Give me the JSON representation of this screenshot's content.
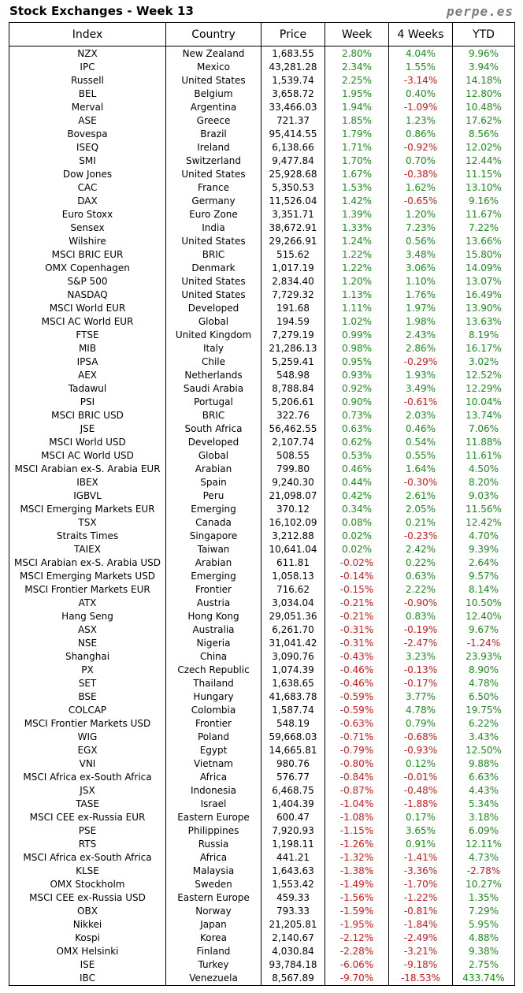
{
  "title": "Stock Exchanges - Week 13",
  "brand": "perpe.es",
  "colors": {
    "positive": "#1e8c1e",
    "negative": "#d41a1a"
  },
  "headers": {
    "index": "Index",
    "country": "Country",
    "price": "Price",
    "week": "Week",
    "weeks4": "4 Weeks",
    "ytd": "YTD"
  },
  "rows": [
    [
      "NZX",
      "New Zealand",
      "1,683.55",
      "2.80%",
      "4.04%",
      "9.96%"
    ],
    [
      "IPC",
      "Mexico",
      "43,281.28",
      "2.34%",
      "1.55%",
      "3.94%"
    ],
    [
      "Russell",
      "United States",
      "1,539.74",
      "2.25%",
      "-3.14%",
      "14.18%"
    ],
    [
      "BEL",
      "Belgium",
      "3,658.72",
      "1.95%",
      "0.40%",
      "12.80%"
    ],
    [
      "Merval",
      "Argentina",
      "33,466.03",
      "1.94%",
      "-1.09%",
      "10.48%"
    ],
    [
      "ASE",
      "Greece",
      "721.37",
      "1.85%",
      "1.23%",
      "17.62%"
    ],
    [
      "Bovespa",
      "Brazil",
      "95,414.55",
      "1.79%",
      "0.86%",
      "8.56%"
    ],
    [
      "ISEQ",
      "Ireland",
      "6,138.66",
      "1.71%",
      "-0.92%",
      "12.02%"
    ],
    [
      "SMI",
      "Switzerland",
      "9,477.84",
      "1.70%",
      "0.70%",
      "12.44%"
    ],
    [
      "Dow Jones",
      "United States",
      "25,928.68",
      "1.67%",
      "-0.38%",
      "11.15%"
    ],
    [
      "CAC",
      "France",
      "5,350.53",
      "1.53%",
      "1.62%",
      "13.10%"
    ],
    [
      "DAX",
      "Germany",
      "11,526.04",
      "1.42%",
      "-0.65%",
      "9.16%"
    ],
    [
      "Euro Stoxx",
      "Euro Zone",
      "3,351.71",
      "1.39%",
      "1.20%",
      "11.67%"
    ],
    [
      "Sensex",
      "India",
      "38,672.91",
      "1.33%",
      "7.23%",
      "7.22%"
    ],
    [
      "Wilshire",
      "United States",
      "29,266.91",
      "1.24%",
      "0.56%",
      "13.66%"
    ],
    [
      "MSCI BRIC EUR",
      "BRIC",
      "515.62",
      "1.22%",
      "3.48%",
      "15.80%"
    ],
    [
      "OMX Copenhagen",
      "Denmark",
      "1,017.19",
      "1.22%",
      "3.06%",
      "14.09%"
    ],
    [
      "S&P 500",
      "United States",
      "2,834.40",
      "1.20%",
      "1.10%",
      "13.07%"
    ],
    [
      "NASDAQ",
      "United States",
      "7,729.32",
      "1.13%",
      "1.76%",
      "16.49%"
    ],
    [
      "MSCI World EUR",
      "Developed",
      "191.68",
      "1.11%",
      "1.97%",
      "13.90%"
    ],
    [
      "MSCI AC World EUR",
      "Global",
      "194.59",
      "1.02%",
      "1.98%",
      "13.63%"
    ],
    [
      "FTSE",
      "United Kingdom",
      "7,279.19",
      "0.99%",
      "2.43%",
      "8.19%"
    ],
    [
      "MIB",
      "Italy",
      "21,286.13",
      "0.98%",
      "2.86%",
      "16.17%"
    ],
    [
      "IPSA",
      "Chile",
      "5,259.41",
      "0.95%",
      "-0.29%",
      "3.02%"
    ],
    [
      "AEX",
      "Netherlands",
      "548.98",
      "0.93%",
      "1.93%",
      "12.52%"
    ],
    [
      "Tadawul",
      "Saudi Arabia",
      "8,788.84",
      "0.92%",
      "3.49%",
      "12.29%"
    ],
    [
      "PSI",
      "Portugal",
      "5,206.61",
      "0.90%",
      "-0.61%",
      "10.04%"
    ],
    [
      "MSCI BRIC USD",
      "BRIC",
      "322.76",
      "0.73%",
      "2.03%",
      "13.74%"
    ],
    [
      "JSE",
      "South Africa",
      "56,462.55",
      "0.63%",
      "0.46%",
      "7.06%"
    ],
    [
      "MSCI World USD",
      "Developed",
      "2,107.74",
      "0.62%",
      "0.54%",
      "11.88%"
    ],
    [
      "MSCI AC World USD",
      "Global",
      "508.55",
      "0.53%",
      "0.55%",
      "11.61%"
    ],
    [
      "MSCI Arabian ex-S. Arabia EUR",
      "Arabian",
      "799.80",
      "0.46%",
      "1.64%",
      "4.50%"
    ],
    [
      "IBEX",
      "Spain",
      "9,240.30",
      "0.44%",
      "-0.30%",
      "8.20%"
    ],
    [
      "IGBVL",
      "Peru",
      "21,098.07",
      "0.42%",
      "2.61%",
      "9.03%"
    ],
    [
      "MSCI Emerging Markets EUR",
      "Emerging",
      "370.12",
      "0.34%",
      "2.05%",
      "11.56%"
    ],
    [
      "TSX",
      "Canada",
      "16,102.09",
      "0.08%",
      "0.21%",
      "12.42%"
    ],
    [
      "Straits Times",
      "Singapore",
      "3,212.88",
      "0.02%",
      "-0.23%",
      "4.70%"
    ],
    [
      "TAIEX",
      "Taiwan",
      "10,641.04",
      "0.02%",
      "2.42%",
      "9.39%"
    ],
    [
      "MSCI Arabian ex-S. Arabia USD",
      "Arabian",
      "611.81",
      "-0.02%",
      "0.22%",
      "2.64%"
    ],
    [
      "MSCI Emerging Markets USD",
      "Emerging",
      "1,058.13",
      "-0.14%",
      "0.63%",
      "9.57%"
    ],
    [
      "MSCI Frontier Markets EUR",
      "Frontier",
      "716.62",
      "-0.15%",
      "2.22%",
      "8.14%"
    ],
    [
      "ATX",
      "Austria",
      "3,034.04",
      "-0.21%",
      "-0.90%",
      "10.50%"
    ],
    [
      "Hang Seng",
      "Hong Kong",
      "29,051.36",
      "-0.21%",
      "0.83%",
      "12.40%"
    ],
    [
      "ASX",
      "Australia",
      "6,261.70",
      "-0.31%",
      "-0.19%",
      "9.67%"
    ],
    [
      "NSE",
      "Nigeria",
      "31,041.42",
      "-0.31%",
      "-2.47%",
      "-1.24%"
    ],
    [
      "Shanghai",
      "China",
      "3,090.76",
      "-0.43%",
      "3.23%",
      "23.93%"
    ],
    [
      "PX",
      "Czech Republic",
      "1,074.39",
      "-0.46%",
      "-0.13%",
      "8.90%"
    ],
    [
      "SET",
      "Thailand",
      "1,638.65",
      "-0.46%",
      "-0.17%",
      "4.78%"
    ],
    [
      "BSE",
      "Hungary",
      "41,683.78",
      "-0.59%",
      "3.77%",
      "6.50%"
    ],
    [
      "COLCAP",
      "Colombia",
      "1,587.74",
      "-0.59%",
      "4.78%",
      "19.75%"
    ],
    [
      "MSCI Frontier Markets USD",
      "Frontier",
      "548.19",
      "-0.63%",
      "0.79%",
      "6.22%"
    ],
    [
      "WIG",
      "Poland",
      "59,668.03",
      "-0.71%",
      "-0.68%",
      "3.43%"
    ],
    [
      "EGX",
      "Egypt",
      "14,665.81",
      "-0.79%",
      "-0.93%",
      "12.50%"
    ],
    [
      "VNI",
      "Vietnam",
      "980.76",
      "-0.80%",
      "0.12%",
      "9.88%"
    ],
    [
      "MSCI Africa ex-South Africa",
      "Africa",
      "576.77",
      "-0.84%",
      "-0.01%",
      "6.63%"
    ],
    [
      "JSX",
      "Indonesia",
      "6,468.75",
      "-0.87%",
      "-0.48%",
      "4.43%"
    ],
    [
      "TASE",
      "Israel",
      "1,404.39",
      "-1.04%",
      "-1.88%",
      "5.34%"
    ],
    [
      "MSCI CEE ex-Russia EUR",
      "Eastern Europe",
      "600.47",
      "-1.08%",
      "0.17%",
      "3.18%"
    ],
    [
      "PSE",
      "Philippines",
      "7,920.93",
      "-1.15%",
      "3.65%",
      "6.09%"
    ],
    [
      "RTS",
      "Russia",
      "1,198.11",
      "-1.26%",
      "0.91%",
      "12.11%"
    ],
    [
      "MSCI Africa ex-South Africa",
      "Africa",
      "441.21",
      "-1.32%",
      "-1.41%",
      "4.73%"
    ],
    [
      "KLSE",
      "Malaysia",
      "1,643.63",
      "-1.38%",
      "-3.36%",
      "-2.78%"
    ],
    [
      "OMX Stockholm",
      "Sweden",
      "1,553.42",
      "-1.49%",
      "-1.70%",
      "10.27%"
    ],
    [
      "MSCI CEE ex-Russia USD",
      "Eastern Europe",
      "459.33",
      "-1.56%",
      "-1.22%",
      "1.35%"
    ],
    [
      "OBX",
      "Norway",
      "793.33",
      "-1.59%",
      "-0.81%",
      "7.29%"
    ],
    [
      "Nikkei",
      "Japan",
      "21,205.81",
      "-1.95%",
      "-1.84%",
      "5.95%"
    ],
    [
      "Kospi",
      "Korea",
      "2,140.67",
      "-2.12%",
      "-2.49%",
      "4.88%"
    ],
    [
      "OMX Helsinki",
      "Finland",
      "4,030.84",
      "-2.28%",
      "-3.21%",
      "9.38%"
    ],
    [
      "ISE",
      "Turkey",
      "93,784.18",
      "-6.06%",
      "-9.18%",
      "2.75%"
    ],
    [
      "IBC",
      "Venezuela",
      "8,567.89",
      "-9.70%",
      "-18.53%",
      "433.74%"
    ]
  ]
}
